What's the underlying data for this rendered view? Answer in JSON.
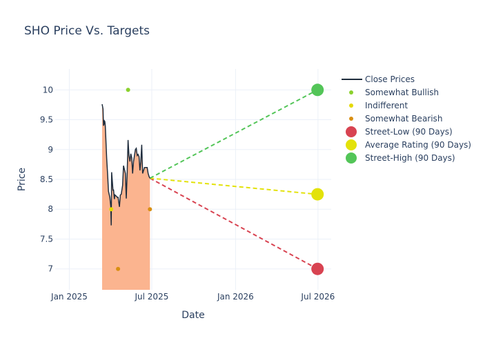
{
  "chart_data": {
    "type": "line",
    "title": "SHO Price Vs. Targets",
    "xlabel": "Date",
    "ylabel": "Price",
    "x_range": [
      "2024-12-01",
      "2026-07-30"
    ],
    "y_range": [
      6.65,
      10.35
    ],
    "x_ticks": [
      {
        "date": "2025-01-01",
        "label": "Jan 2025"
      },
      {
        "date": "2025-07-01",
        "label": "Jul 2025"
      },
      {
        "date": "2026-01-01",
        "label": "Jan 2026"
      },
      {
        "date": "2026-07-01",
        "label": "Jul 2026"
      }
    ],
    "y_ticks": [
      7,
      7.5,
      8,
      8.5,
      9,
      9.5,
      10
    ],
    "y_tick_labels": [
      "7",
      "7.5",
      "8",
      "8.5",
      "9",
      "9.5",
      "10"
    ],
    "grid": true,
    "legend_position": "top-right",
    "close_prices": {
      "name": "Close Prices",
      "color": "#1f2d3d",
      "fill_color": "#fbb48f",
      "points": [
        [
          "2025-03-14",
          9.76
        ],
        [
          "2025-03-16",
          9.68
        ],
        [
          "2025-03-17",
          9.4
        ],
        [
          "2025-03-18",
          9.42
        ],
        [
          "2025-03-19",
          9.48
        ],
        [
          "2025-03-20",
          9.47
        ],
        [
          "2025-03-21",
          9.4
        ],
        [
          "2025-03-24",
          8.85
        ],
        [
          "2025-03-26",
          8.6
        ],
        [
          "2025-03-28",
          8.3
        ],
        [
          "2025-03-31",
          8.2
        ],
        [
          "2025-04-02",
          8.05
        ],
        [
          "2025-04-03",
          7.73
        ],
        [
          "2025-04-04",
          8.62
        ],
        [
          "2025-04-07",
          8.31
        ],
        [
          "2025-04-08",
          8.33
        ],
        [
          "2025-04-10",
          8.17
        ],
        [
          "2025-04-11",
          8.24
        ],
        [
          "2025-04-14",
          8.22
        ],
        [
          "2025-04-16",
          8.2
        ],
        [
          "2025-04-18",
          8.2
        ],
        [
          "2025-04-21",
          8.04
        ],
        [
          "2025-04-23",
          8.24
        ],
        [
          "2025-04-25",
          8.25
        ],
        [
          "2025-04-28",
          8.4
        ],
        [
          "2025-04-30",
          8.73
        ],
        [
          "2025-05-02",
          8.67
        ],
        [
          "2025-05-04",
          8.6
        ],
        [
          "2025-05-06",
          8.18
        ],
        [
          "2025-05-08",
          8.6
        ],
        [
          "2025-05-10",
          9.16
        ],
        [
          "2025-05-12",
          8.9
        ],
        [
          "2025-05-14",
          8.8
        ],
        [
          "2025-05-16",
          8.93
        ],
        [
          "2025-05-18",
          8.86
        ],
        [
          "2025-05-20",
          8.6
        ],
        [
          "2025-05-22",
          8.8
        ],
        [
          "2025-05-24",
          8.9
        ],
        [
          "2025-05-26",
          9.0
        ],
        [
          "2025-05-28",
          9.02
        ],
        [
          "2025-05-30",
          8.9
        ],
        [
          "2025-06-01",
          8.92
        ],
        [
          "2025-06-03",
          8.88
        ],
        [
          "2025-06-05",
          8.65
        ],
        [
          "2025-06-07",
          8.8
        ],
        [
          "2025-06-09",
          9.08
        ],
        [
          "2025-06-11",
          8.6
        ],
        [
          "2025-06-13",
          8.65
        ],
        [
          "2025-06-15",
          8.7
        ],
        [
          "2025-06-17",
          8.7
        ],
        [
          "2025-06-19",
          8.7
        ],
        [
          "2025-06-21",
          8.7
        ],
        [
          "2025-06-23",
          8.6
        ],
        [
          "2025-06-25",
          8.55
        ],
        [
          "2025-06-27",
          8.52
        ]
      ]
    },
    "analyst_ratings": [
      {
        "series": "Somewhat Bullish",
        "color": "#8bd12e",
        "date": "2025-05-10",
        "value": 10.0
      },
      {
        "series": "Indifferent",
        "color": "#e4d900",
        "date": "2025-04-03",
        "value": 8.0
      },
      {
        "series": "Somewhat Bearish",
        "color": "#d98f12",
        "date": "2025-04-18",
        "value": 7.0
      },
      {
        "series": "Somewhat Bearish",
        "color": "#d98f12",
        "date": "2025-06-27",
        "value": 8.0
      }
    ],
    "targets": {
      "start": {
        "date": "2025-06-27",
        "value": 8.52
      },
      "end_date": "2026-06-30",
      "series": [
        {
          "name": "Street-Low (90 Days)",
          "color": "#d84351",
          "value": 7.0
        },
        {
          "name": "Average Rating (90 Days)",
          "color": "#e3e20a",
          "value": 8.25
        },
        {
          "name": "Street-High (90 Days)",
          "color": "#53c558",
          "value": 10.0
        }
      ]
    },
    "legend": [
      {
        "label": "Close Prices",
        "kind": "line",
        "color": "#1f2d3d"
      },
      {
        "label": "Somewhat Bullish",
        "kind": "small-dot",
        "color": "#8bd12e"
      },
      {
        "label": "Indifferent",
        "kind": "small-dot",
        "color": "#e4d900"
      },
      {
        "label": "Somewhat Bearish",
        "kind": "small-dot",
        "color": "#d98f12"
      },
      {
        "label": "Street-Low (90 Days)",
        "kind": "big-dot",
        "color": "#d84351"
      },
      {
        "label": "Average Rating (90 Days)",
        "kind": "big-dot",
        "color": "#e3e20a"
      },
      {
        "label": "Street-High (90 Days)",
        "kind": "big-dot",
        "color": "#53c558"
      }
    ]
  }
}
